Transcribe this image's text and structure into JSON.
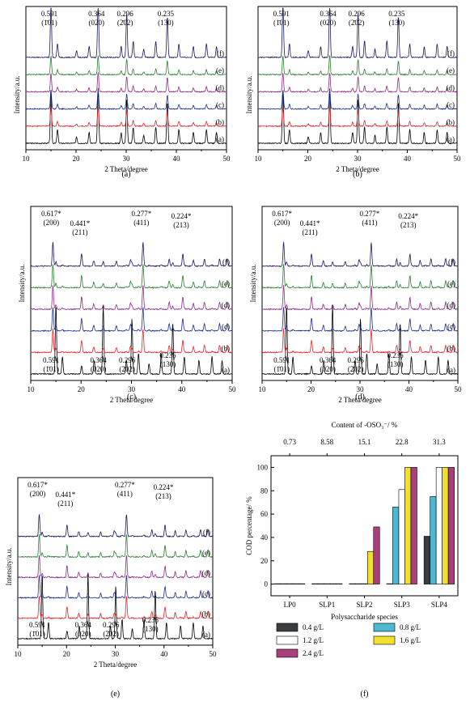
{
  "xrd_common": {
    "xlabel": "2 Theta/degree",
    "ylabel": "Intensity/a.u.",
    "xlim": [
      10,
      50
    ],
    "xticks": [
      "10",
      "20",
      "30",
      "40",
      "50"
    ],
    "trace_labels": [
      "(a)",
      "(b)",
      "(c)",
      "(d)",
      "(e)",
      "(f)"
    ],
    "trace_colors": [
      "#000000",
      "#e8232a",
      "#1f2f8f",
      "#8b2a86",
      "#2e7d32",
      "#1a1a5e"
    ]
  },
  "panels_xrd": [
    {
      "caption": "(a)",
      "peaks_top": [
        {
          "d": "0.591",
          "hkl": "(1̄01)",
          "two_theta": 15.0
        },
        {
          "d": "0.364",
          "hkl": "(020)",
          "two_theta": 24.4
        },
        {
          "d": "0.296",
          "hkl": "(2̄02)",
          "two_theta": 30.1
        },
        {
          "d": "0.235",
          "hkl": "(130)",
          "two_theta": 38.2
        }
      ],
      "peaks_bottom": []
    },
    {
      "caption": "(b)",
      "peaks_top": [
        {
          "d": "0.591",
          "hkl": "(1̄01)",
          "two_theta": 15.0
        },
        {
          "d": "0.364",
          "hkl": "(020)",
          "two_theta": 24.4
        },
        {
          "d": "0.296",
          "hkl": "(2̄02)",
          "two_theta": 30.1
        },
        {
          "d": "0.235",
          "hkl": "(130)",
          "two_theta": 38.2
        }
      ],
      "peaks_bottom": []
    },
    {
      "caption": "(c)",
      "peaks_top": [
        {
          "d": "0.617*",
          "hkl": "(200)",
          "two_theta": 14.4
        },
        {
          "d": "0.441*",
          "hkl": "(211)",
          "two_theta": 20.1
        },
        {
          "d": "0.277*",
          "hkl": "(411)",
          "two_theta": 32.3
        },
        {
          "d": "0.224*",
          "hkl": "(213)",
          "two_theta": 40.2
        }
      ],
      "peaks_bottom": [
        {
          "d": "0.591",
          "hkl": "(1̄01)",
          "two_theta": 15.0
        },
        {
          "d": "0.364",
          "hkl": "(020)",
          "two_theta": 24.4
        },
        {
          "d": "0.296",
          "hkl": "(2̄02)",
          "two_theta": 30.1
        },
        {
          "d": "0.235",
          "hkl": "(130)",
          "two_theta": 38.2
        }
      ]
    },
    {
      "caption": "(d)",
      "peaks_top": [
        {
          "d": "0.617*",
          "hkl": "(200)",
          "two_theta": 14.4
        },
        {
          "d": "0.441*",
          "hkl": "(211)",
          "two_theta": 20.1
        },
        {
          "d": "0.277*",
          "hkl": "(411)",
          "two_theta": 32.3
        },
        {
          "d": "0.224*",
          "hkl": "(213)",
          "two_theta": 40.2
        }
      ],
      "peaks_bottom": [
        {
          "d": "0.591",
          "hkl": "(1̄01)",
          "two_theta": 15.0
        },
        {
          "d": "0.364",
          "hkl": "(020)",
          "two_theta": 24.4
        },
        {
          "d": "0.296",
          "hkl": "(2̄02)",
          "two_theta": 30.1
        },
        {
          "d": "0.235",
          "hkl": "(130)",
          "two_theta": 38.2
        }
      ]
    },
    {
      "caption": "(e)",
      "peaks_top": [
        {
          "d": "0.617*",
          "hkl": "(200)",
          "two_theta": 14.4
        },
        {
          "d": "0.441*",
          "hkl": "(211)",
          "two_theta": 20.1
        },
        {
          "d": "0.277*",
          "hkl": "(411)",
          "two_theta": 32.3
        },
        {
          "d": "0.224*",
          "hkl": "(213)",
          "two_theta": 40.2
        }
      ],
      "peaks_bottom": [
        {
          "d": "0.591",
          "hkl": "(1̄01)",
          "two_theta": 15.0
        },
        {
          "d": "0.364",
          "hkl": "(020)",
          "two_theta": 24.4
        },
        {
          "d": "0.296",
          "hkl": "(2̄02)",
          "two_theta": 30.1
        },
        {
          "d": "0.235",
          "hkl": "(130)",
          "two_theta": 38.2
        }
      ]
    }
  ],
  "chart_data": {
    "type": "bar",
    "caption": "(f)",
    "title": "",
    "top_axis_label": "Content of -OSO₃⁻/ %",
    "top_axis_values": [
      "0.73",
      "8.58",
      "15.1",
      "22.8",
      "31.3"
    ],
    "xlabel": "Polysaccharide species",
    "ylabel": "COD percentage/ %",
    "categories": [
      "LP0",
      "SLP1",
      "SLP2",
      "SLP3",
      "SLP4"
    ],
    "ylim": [
      -10,
      110
    ],
    "yticks": [
      "0",
      "20",
      "40",
      "60",
      "80",
      "100"
    ],
    "series": [
      {
        "name": "0.4 g/L",
        "color": "#3a3d40",
        "values": [
          0,
          0,
          0,
          0,
          41
        ]
      },
      {
        "name": "0.8 g/L",
        "color": "#4eb7d4",
        "values": [
          0,
          0,
          0,
          66,
          75
        ]
      },
      {
        "name": "1.2 g/L",
        "color": "#ffffff",
        "values": [
          0,
          0,
          0,
          81,
          100
        ]
      },
      {
        "name": "1.6 g/L",
        "color": "#f2e12c",
        "values": [
          0,
          0,
          28,
          100,
          100
        ]
      },
      {
        "name": "2.4 g/L",
        "color": "#a8407a",
        "values": [
          0,
          0,
          49,
          100,
          100
        ]
      }
    ],
    "legend_placement": "bottom"
  }
}
